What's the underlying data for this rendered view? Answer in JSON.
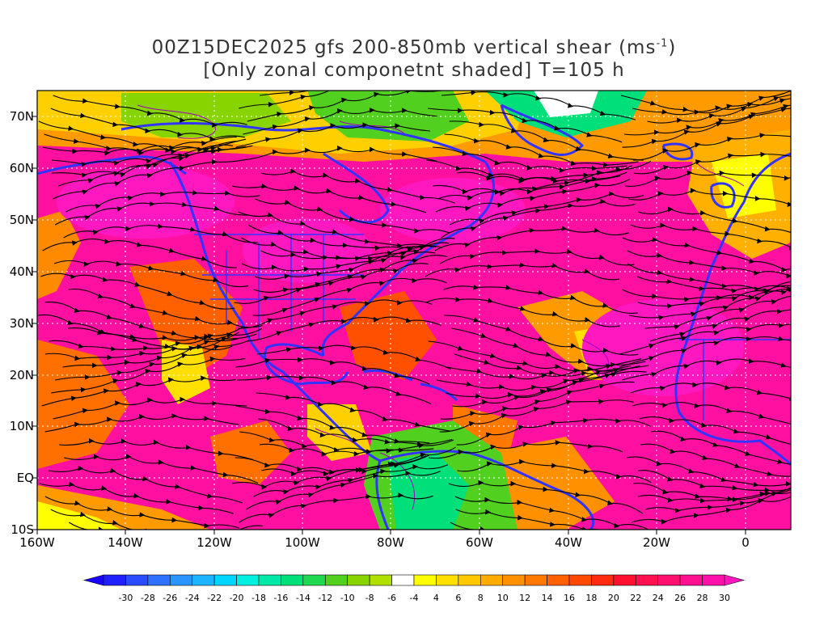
{
  "title": {
    "line1": "00Z15DEC2025 gfs 200-850mb vertical shear (ms",
    "line1_sup": "-1",
    "line1_end": ")",
    "line2": "[Only zonal componetnt shaded] T=105 h"
  },
  "lat_labels": [
    "70N",
    "60N",
    "50N",
    "40N",
    "30N",
    "20N",
    "10N",
    "EQ",
    "10S"
  ],
  "lon_labels": [
    "160W",
    "140W",
    "120W",
    "100W",
    "80W",
    "60W",
    "40W",
    "20W",
    "0"
  ],
  "colorbar": {
    "labels": [
      "-30",
      "-28",
      "-26",
      "-24",
      "-22",
      "-20",
      "-18",
      "-16",
      "-14",
      "-12",
      "-10",
      "-8",
      "-6",
      "-4",
      "4",
      "6",
      "8",
      "10",
      "12",
      "14",
      "16",
      "18",
      "20",
      "22",
      "24",
      "26",
      "28",
      "30"
    ],
    "colors": [
      "#2020ff",
      "#2a4bff",
      "#2e70ff",
      "#2a95ff",
      "#1cb4ff",
      "#00d6ff",
      "#00f0e0",
      "#00e8a8",
      "#00e07a",
      "#20d850",
      "#52d020",
      "#88d400",
      "#b0e000",
      "#ffffff",
      "#ffff00",
      "#ffe000",
      "#ffc800",
      "#ffac00",
      "#ff9000",
      "#ff7800",
      "#ff6000",
      "#ff4800",
      "#ff2a10",
      "#ff1030",
      "#ff1050",
      "#ff1070",
      "#ff1090",
      "#ff10a8"
    ],
    "under_color": "#1a00ff",
    "over_color": "#ff18c0"
  },
  "colors": {
    "coastline": "#3333ff",
    "streamline": "#000000",
    "contour": "#a000c0",
    "grid": "#ffffff"
  }
}
